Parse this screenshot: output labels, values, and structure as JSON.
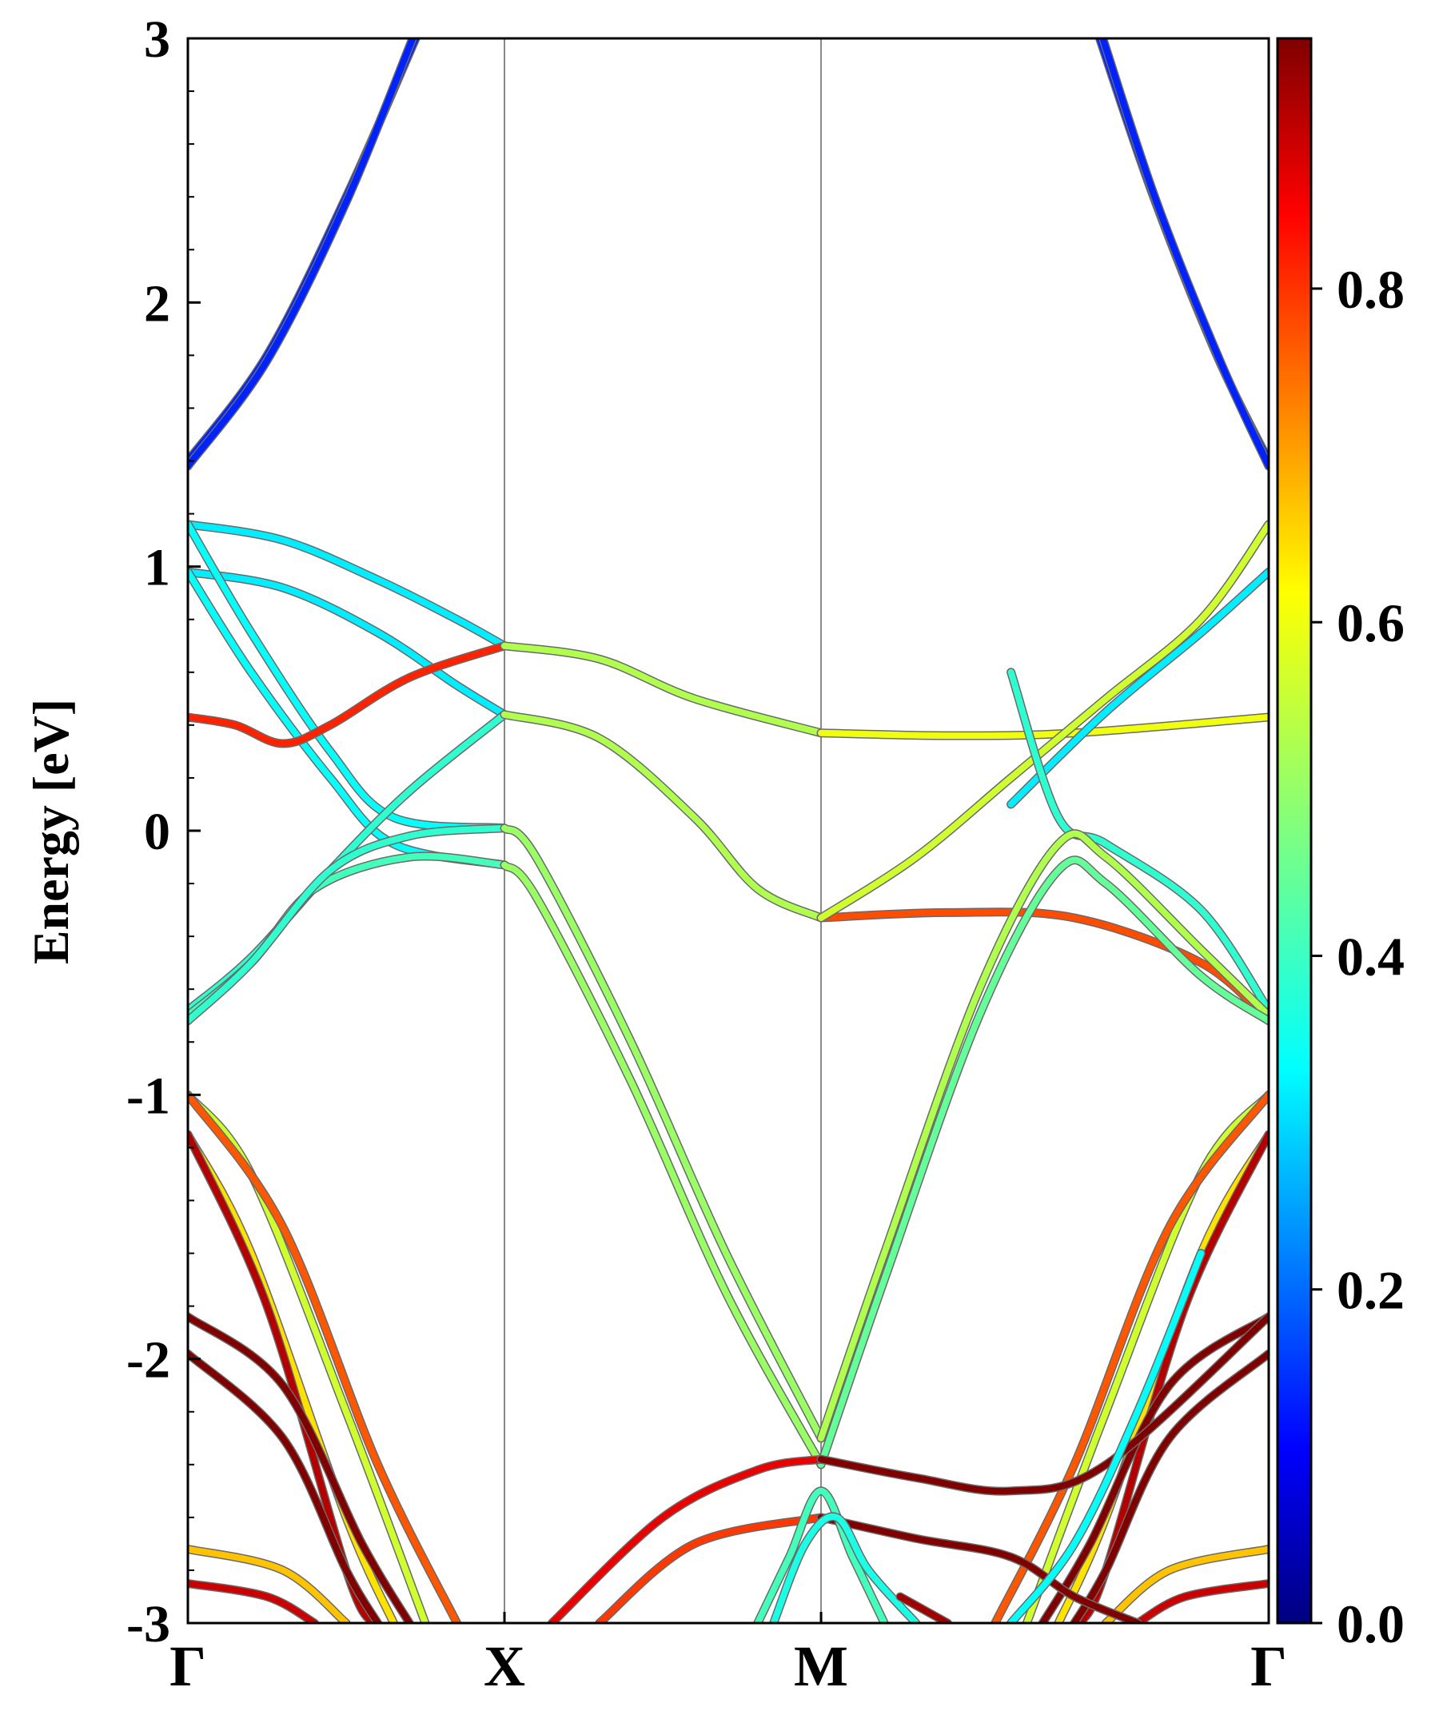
{
  "chart_data": {
    "type": "line",
    "title": "",
    "xlabel": "",
    "ylabel": "Energy [eV]",
    "ylim": [
      -3,
      3
    ],
    "grid": false,
    "legend": "none",
    "x_ticks": [
      {
        "label": "Γ",
        "k": 0
      },
      {
        "label": "X",
        "k": 1
      },
      {
        "label": "M",
        "k": 2
      },
      {
        "label": "Γ",
        "k": 3.414
      }
    ],
    "y_ticks": [
      "-3",
      "-2",
      "-1",
      "0",
      "1",
      "2",
      "3"
    ],
    "colorbar": {
      "colormap": "jet",
      "range": [
        0.0,
        0.95
      ],
      "ticks": [
        "0.0",
        "0.2",
        "0.4",
        "0.6",
        "0.8"
      ]
    },
    "series": [
      {
        "weight": 0.15,
        "points": [
          [
            0,
            1.4
          ],
          [
            0.25,
            1.8
          ],
          [
            0.5,
            2.4
          ],
          [
            0.72,
            3.0
          ]
        ]
      },
      {
        "weight": 0.15,
        "points": [
          [
            0,
            1.38
          ],
          [
            0.25,
            1.78
          ],
          [
            0.5,
            2.38
          ],
          [
            0.71,
            3.0
          ]
        ]
      },
      {
        "weight": 0.15,
        "points": [
          [
            2.88,
            3.0
          ],
          [
            3.05,
            2.4
          ],
          [
            3.25,
            1.8
          ],
          [
            3.414,
            1.4
          ]
        ]
      },
      {
        "weight": 0.15,
        "points": [
          [
            2.89,
            3.0
          ],
          [
            3.06,
            2.38
          ],
          [
            3.26,
            1.78
          ],
          [
            3.414,
            1.38
          ]
        ]
      },
      {
        "weight": 0.34,
        "points": [
          [
            0,
            1.16
          ],
          [
            0.3,
            1.1
          ],
          [
            0.6,
            0.95
          ],
          [
            0.85,
            0.8
          ],
          [
            1,
            0.7
          ]
        ]
      },
      {
        "weight": 0.34,
        "points": [
          [
            0,
            0.98
          ],
          [
            0.3,
            0.92
          ],
          [
            0.6,
            0.75
          ],
          [
            0.85,
            0.55
          ],
          [
            1,
            0.44
          ]
        ]
      },
      {
        "weight": 0.36,
        "points": [
          [
            0,
            1.16
          ],
          [
            0.2,
            0.75
          ],
          [
            0.45,
            0.3
          ],
          [
            0.65,
            0.05
          ],
          [
            1,
            0.01
          ]
        ]
      },
      {
        "weight": 0.36,
        "points": [
          [
            0,
            0.98
          ],
          [
            0.2,
            0.6
          ],
          [
            0.45,
            0.2
          ],
          [
            0.65,
            -0.05
          ],
          [
            1,
            -0.13
          ]
        ]
      },
      {
        "weight": 0.4,
        "points": [
          [
            0,
            -0.68
          ],
          [
            0.2,
            -0.48
          ],
          [
            0.45,
            -0.15
          ],
          [
            0.7,
            0.15
          ],
          [
            1,
            0.44
          ]
        ]
      },
      {
        "weight": 0.42,
        "points": [
          [
            0,
            -0.7
          ],
          [
            0.2,
            -0.5
          ],
          [
            0.4,
            -0.22
          ],
          [
            0.7,
            -0.1
          ],
          [
            1,
            -0.13
          ]
        ]
      },
      {
        "weight": 0.8,
        "points": [
          [
            0,
            0.43
          ],
          [
            0.15,
            0.4
          ],
          [
            0.3,
            0.33
          ],
          [
            0.45,
            0.4
          ],
          [
            0.7,
            0.58
          ],
          [
            1,
            0.7
          ]
        ]
      },
      {
        "weight": 0.4,
        "points": [
          [
            0,
            -0.72
          ],
          [
            0.2,
            -0.5
          ],
          [
            0.45,
            -0.15
          ],
          [
            0.7,
            -0.02
          ],
          [
            1,
            0.01
          ]
        ]
      },
      {
        "weight": 0.52,
        "points": [
          [
            1,
            0.7
          ],
          [
            1.3,
            0.65
          ],
          [
            1.6,
            0.5
          ],
          [
            2,
            0.37
          ]
        ]
      },
      {
        "weight": 0.58,
        "points": [
          [
            2,
            0.37
          ],
          [
            2.4,
            0.36
          ],
          [
            2.8,
            0.37
          ],
          [
            3.414,
            0.43
          ]
        ]
      },
      {
        "weight": 0.52,
        "points": [
          [
            1,
            0.44
          ],
          [
            1.3,
            0.35
          ],
          [
            1.6,
            0.05
          ],
          [
            1.8,
            -0.22
          ],
          [
            2,
            -0.33
          ]
        ]
      },
      {
        "weight": 0.76,
        "points": [
          [
            2,
            -0.33
          ],
          [
            2.4,
            -0.31
          ],
          [
            2.8,
            -0.33
          ],
          [
            3.2,
            -0.5
          ],
          [
            3.414,
            -0.72
          ]
        ]
      },
      {
        "weight": 0.55,
        "points": [
          [
            2,
            -0.33
          ],
          [
            2.3,
            -0.1
          ],
          [
            2.6,
            0.2
          ],
          [
            2.9,
            0.5
          ],
          [
            3.2,
            0.8
          ],
          [
            3.414,
            1.16
          ]
        ]
      },
      {
        "weight": 0.34,
        "points": [
          [
            2.6,
            0.1
          ],
          [
            2.9,
            0.45
          ],
          [
            3.2,
            0.75
          ],
          [
            3.414,
            0.98
          ]
        ]
      },
      {
        "weight": 0.4,
        "points": [
          [
            2.6,
            0.6
          ],
          [
            2.75,
            0.05
          ],
          [
            2.9,
            -0.05
          ],
          [
            3.2,
            -0.3
          ],
          [
            3.414,
            -0.68
          ]
        ]
      },
      {
        "weight": 0.5,
        "points": [
          [
            1,
            0.01
          ],
          [
            1.1,
            -0.1
          ],
          [
            1.4,
            -0.8
          ],
          [
            1.7,
            -1.6
          ],
          [
            2,
            -2.3
          ]
        ]
      },
      {
        "weight": 0.5,
        "points": [
          [
            1,
            -0.13
          ],
          [
            1.1,
            -0.25
          ],
          [
            1.4,
            -0.95
          ],
          [
            1.7,
            -1.75
          ],
          [
            2,
            -2.4
          ]
        ]
      },
      {
        "weight": 0.52,
        "points": [
          [
            2,
            -2.3
          ],
          [
            2.2,
            -1.6
          ],
          [
            2.5,
            -0.6
          ],
          [
            2.75,
            -0.05
          ],
          [
            2.9,
            -0.1
          ],
          [
            3.2,
            -0.45
          ],
          [
            3.414,
            -0.7
          ]
        ]
      },
      {
        "weight": 0.45,
        "points": [
          [
            2,
            -2.4
          ],
          [
            2.2,
            -1.7
          ],
          [
            2.5,
            -0.7
          ],
          [
            2.75,
            -0.15
          ],
          [
            2.9,
            -0.2
          ],
          [
            3.2,
            -0.55
          ],
          [
            3.414,
            -0.72
          ]
        ]
      },
      {
        "weight": 0.55,
        "points": [
          [
            0,
            -1.0
          ],
          [
            0.2,
            -1.3
          ],
          [
            0.5,
            -2.2
          ],
          [
            0.75,
            -3.0
          ]
        ]
      },
      {
        "weight": 0.75,
        "points": [
          [
            0,
            -1.0
          ],
          [
            0.3,
            -1.5
          ],
          [
            0.6,
            -2.4
          ],
          [
            0.85,
            -3.0
          ]
        ]
      },
      {
        "weight": 0.62,
        "points": [
          [
            0,
            -1.15
          ],
          [
            0.2,
            -1.6
          ],
          [
            0.5,
            -2.6
          ],
          [
            0.65,
            -3.0
          ]
        ]
      },
      {
        "weight": 0.9,
        "points": [
          [
            0,
            -1.15
          ],
          [
            0.25,
            -1.8
          ],
          [
            0.5,
            -2.8
          ],
          [
            0.58,
            -3.0
          ]
        ]
      },
      {
        "weight": 0.98,
        "points": [
          [
            0,
            -1.84
          ],
          [
            0.3,
            -2.1
          ],
          [
            0.55,
            -2.7
          ],
          [
            0.7,
            -3.0
          ]
        ]
      },
      {
        "weight": 0.98,
        "points": [
          [
            0,
            -1.98
          ],
          [
            0.3,
            -2.3
          ],
          [
            0.5,
            -2.8
          ],
          [
            0.6,
            -3.0
          ]
        ]
      },
      {
        "weight": 0.65,
        "points": [
          [
            0,
            -2.72
          ],
          [
            0.3,
            -2.8
          ],
          [
            0.5,
            -3.0
          ]
        ]
      },
      {
        "weight": 0.88,
        "points": [
          [
            0,
            -2.85
          ],
          [
            0.25,
            -2.9
          ],
          [
            0.4,
            -3.0
          ]
        ]
      },
      {
        "weight": 0.55,
        "points": [
          [
            3.414,
            -1.0
          ],
          [
            3.2,
            -1.3
          ],
          [
            2.9,
            -2.2
          ],
          [
            2.65,
            -3.0
          ]
        ]
      },
      {
        "weight": 0.75,
        "points": [
          [
            3.414,
            -1.0
          ],
          [
            3.1,
            -1.5
          ],
          [
            2.8,
            -2.4
          ],
          [
            2.55,
            -3.0
          ]
        ]
      },
      {
        "weight": 0.62,
        "points": [
          [
            3.414,
            -1.15
          ],
          [
            3.2,
            -1.6
          ],
          [
            2.9,
            -2.6
          ],
          [
            2.75,
            -3.0
          ]
        ]
      },
      {
        "weight": 0.9,
        "points": [
          [
            3.414,
            -1.15
          ],
          [
            3.15,
            -1.8
          ],
          [
            2.9,
            -2.8
          ],
          [
            2.82,
            -3.0
          ]
        ]
      },
      {
        "weight": 0.98,
        "points": [
          [
            3.414,
            -1.84
          ],
          [
            3.1,
            -2.1
          ],
          [
            2.85,
            -2.7
          ],
          [
            2.7,
            -3.0
          ]
        ]
      },
      {
        "weight": 0.98,
        "points": [
          [
            3.414,
            -1.98
          ],
          [
            3.1,
            -2.3
          ],
          [
            2.9,
            -2.8
          ],
          [
            2.8,
            -3.0
          ]
        ]
      },
      {
        "weight": 0.65,
        "points": [
          [
            3.414,
            -2.72
          ],
          [
            3.1,
            -2.8
          ],
          [
            2.9,
            -3.0
          ]
        ]
      },
      {
        "weight": 0.88,
        "points": [
          [
            3.414,
            -2.85
          ],
          [
            3.15,
            -2.9
          ],
          [
            3.0,
            -3.0
          ]
        ]
      },
      {
        "weight": 0.85,
        "points": [
          [
            1.15,
            -3.0
          ],
          [
            1.5,
            -2.6
          ],
          [
            1.8,
            -2.42
          ],
          [
            2,
            -2.38
          ]
        ]
      },
      {
        "weight": 0.95,
        "points": [
          [
            2,
            -2.38
          ],
          [
            2.3,
            -2.45
          ],
          [
            2.6,
            -2.5
          ],
          [
            2.9,
            -2.4
          ],
          [
            3.414,
            -1.84
          ]
        ]
      },
      {
        "weight": 0.78,
        "points": [
          [
            1.3,
            -3.0
          ],
          [
            1.6,
            -2.7
          ],
          [
            2,
            -2.6
          ]
        ]
      },
      {
        "weight": 0.95,
        "points": [
          [
            2,
            -2.6
          ],
          [
            2.3,
            -2.68
          ],
          [
            2.6,
            -2.75
          ],
          [
            2.8,
            -2.9
          ],
          [
            3.0,
            -3.0
          ]
        ]
      },
      {
        "weight": 0.42,
        "points": [
          [
            1.8,
            -3.0
          ],
          [
            1.9,
            -2.75
          ],
          [
            2,
            -2.5
          ],
          [
            2.1,
            -2.75
          ],
          [
            2.2,
            -3.0
          ]
        ]
      },
      {
        "weight": 0.38,
        "points": [
          [
            1.85,
            -3.0
          ],
          [
            1.95,
            -2.7
          ],
          [
            2.05,
            -2.6
          ],
          [
            2.15,
            -2.8
          ],
          [
            2.3,
            -3.0
          ]
        ]
      },
      {
        "weight": 0.92,
        "points": [
          [
            2.25,
            -2.9
          ],
          [
            2.4,
            -3.0
          ]
        ]
      },
      {
        "weight": 0.36,
        "points": [
          [
            2.6,
            -3.0
          ],
          [
            2.8,
            -2.7
          ],
          [
            3.0,
            -2.2
          ],
          [
            3.2,
            -1.6
          ]
        ]
      }
    ]
  }
}
